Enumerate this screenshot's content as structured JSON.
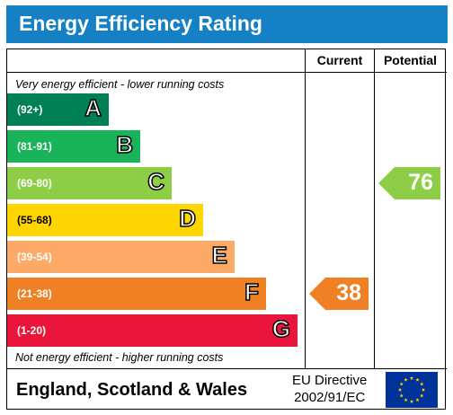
{
  "title": "Energy Efficiency Rating",
  "columns": {
    "current": "Current",
    "potential": "Potential"
  },
  "notes": {
    "top": "Very energy efficient - lower running costs",
    "bottom": "Not energy efficient - higher running costs"
  },
  "footer": {
    "country": "England, Scotland & Wales",
    "directive_line1": "EU Directive",
    "directive_line2": "2002/91/EC",
    "flag_icon": "eu-flag-icon"
  },
  "chart_data": {
    "type": "bar",
    "categories": [
      "A",
      "B",
      "C",
      "D",
      "E",
      "F",
      "G"
    ],
    "bands": [
      {
        "letter": "A",
        "range": "(92+)",
        "min": 92,
        "max": 100,
        "color": "#008054"
      },
      {
        "letter": "B",
        "range": "(81-91)",
        "min": 81,
        "max": 91,
        "color": "#19b459"
      },
      {
        "letter": "C",
        "range": "(69-80)",
        "min": 69,
        "max": 80,
        "color": "#8dce46"
      },
      {
        "letter": "D",
        "range": "(55-68)",
        "min": 55,
        "max": 68,
        "color": "#ffd500"
      },
      {
        "letter": "E",
        "range": "(39-54)",
        "min": 39,
        "max": 54,
        "color": "#fcaa65"
      },
      {
        "letter": "F",
        "range": "(21-38)",
        "min": 21,
        "max": 38,
        "color": "#ef8023"
      },
      {
        "letter": "G",
        "range": "(1-20)",
        "min": 1,
        "max": 20,
        "color": "#e9153b"
      }
    ],
    "current": {
      "value": 38,
      "band": "F",
      "color": "#ef8023"
    },
    "potential": {
      "value": 76,
      "band": "C",
      "color": "#8dce46"
    }
  }
}
